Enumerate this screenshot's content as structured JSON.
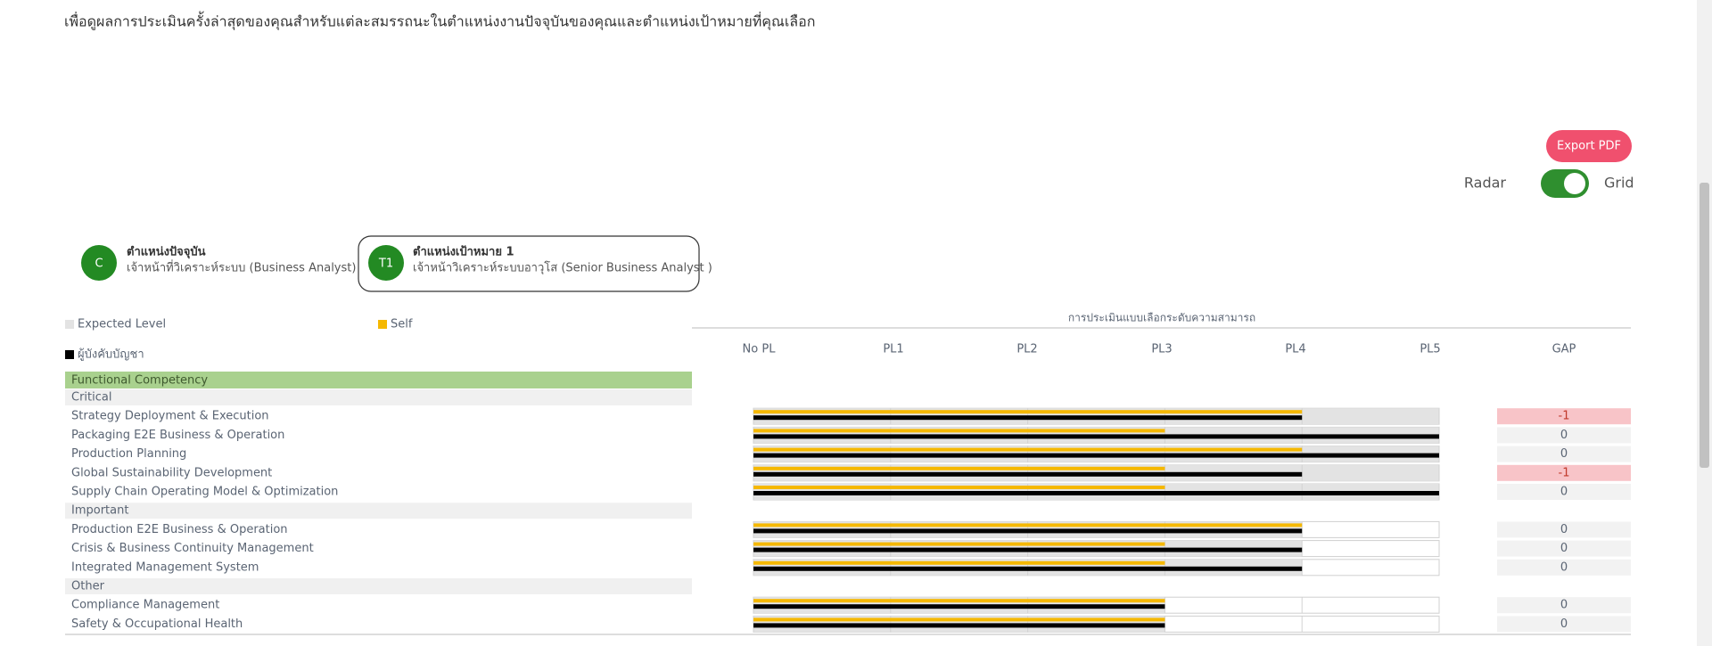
{
  "header": {
    "instruction": "เพื่อดูผลการประเมินครั้งล่าสุดของคุณสำหรับแต่ละสมรรถนะในตำแหน่งงานปัจจุบันของคุณและตำแหน่งเป้าหมายที่คุณเลือก"
  },
  "toolbar": {
    "export_button": "Export PDF",
    "toggle_left": "Radar",
    "toggle_right": "Grid"
  },
  "positions": [
    {
      "badge": "C",
      "title": "ตำแหน่งปัจจุบัน",
      "name": "เจ้าหน้าที่วิเคราะห์ระบบ (Business Analyst)"
    },
    {
      "badge": "T1",
      "title": "ตำแหน่งเป้าหมาย 1",
      "name": "เจ้าหน้าวิเคราะห์ระบบอาวุโส (Senior Business Analyst )"
    }
  ],
  "chart_data": {
    "type": "bar",
    "title": "การประเมินแบบเลือกระดับความสามารถ",
    "group": "Functional Competency",
    "gap_header": "GAP",
    "xlim": [
      0,
      5
    ],
    "xticks": [
      {
        "value": 0,
        "label": "No PL"
      },
      {
        "value": 1,
        "label": "PL1"
      },
      {
        "value": 2,
        "label": "PL2"
      },
      {
        "value": 3,
        "label": "PL3"
      },
      {
        "value": 4,
        "label": "PL4"
      },
      {
        "value": 5,
        "label": "PL5"
      }
    ],
    "sections": [
      {
        "name": "Critical",
        "categories": [
          "Strategy Deployment & Execution",
          "Packaging E2E Business & Operation",
          "Production Planning",
          "Global Sustainability Development",
          "Supply Chain Operating Model & Optimization"
        ]
      },
      {
        "name": "Important",
        "categories": [
          "Production E2E Business & Operation",
          "Crisis & Business Continuity Management",
          "Integrated Management System"
        ]
      },
      {
        "name": "Other",
        "categories": [
          "Compliance Management",
          "Safety & Occupational Health"
        ]
      }
    ],
    "series": [
      {
        "name": "Expected Level",
        "color": "#e3e3e3",
        "values": [
          5,
          5,
          5,
          5,
          5,
          4,
          4,
          4,
          3,
          3
        ]
      },
      {
        "name": "Self",
        "color": "#f5b800",
        "values": [
          4,
          3,
          4,
          3,
          3,
          4,
          3,
          3,
          3,
          3
        ]
      },
      {
        "name": "ผู้บังคับบัญชา",
        "color": "#000000",
        "values": [
          4,
          5,
          5,
          4,
          5,
          4,
          4,
          4,
          3,
          3
        ]
      }
    ],
    "gap": [
      -1,
      0,
      0,
      -1,
      0,
      0,
      0,
      0,
      0,
      0
    ]
  }
}
